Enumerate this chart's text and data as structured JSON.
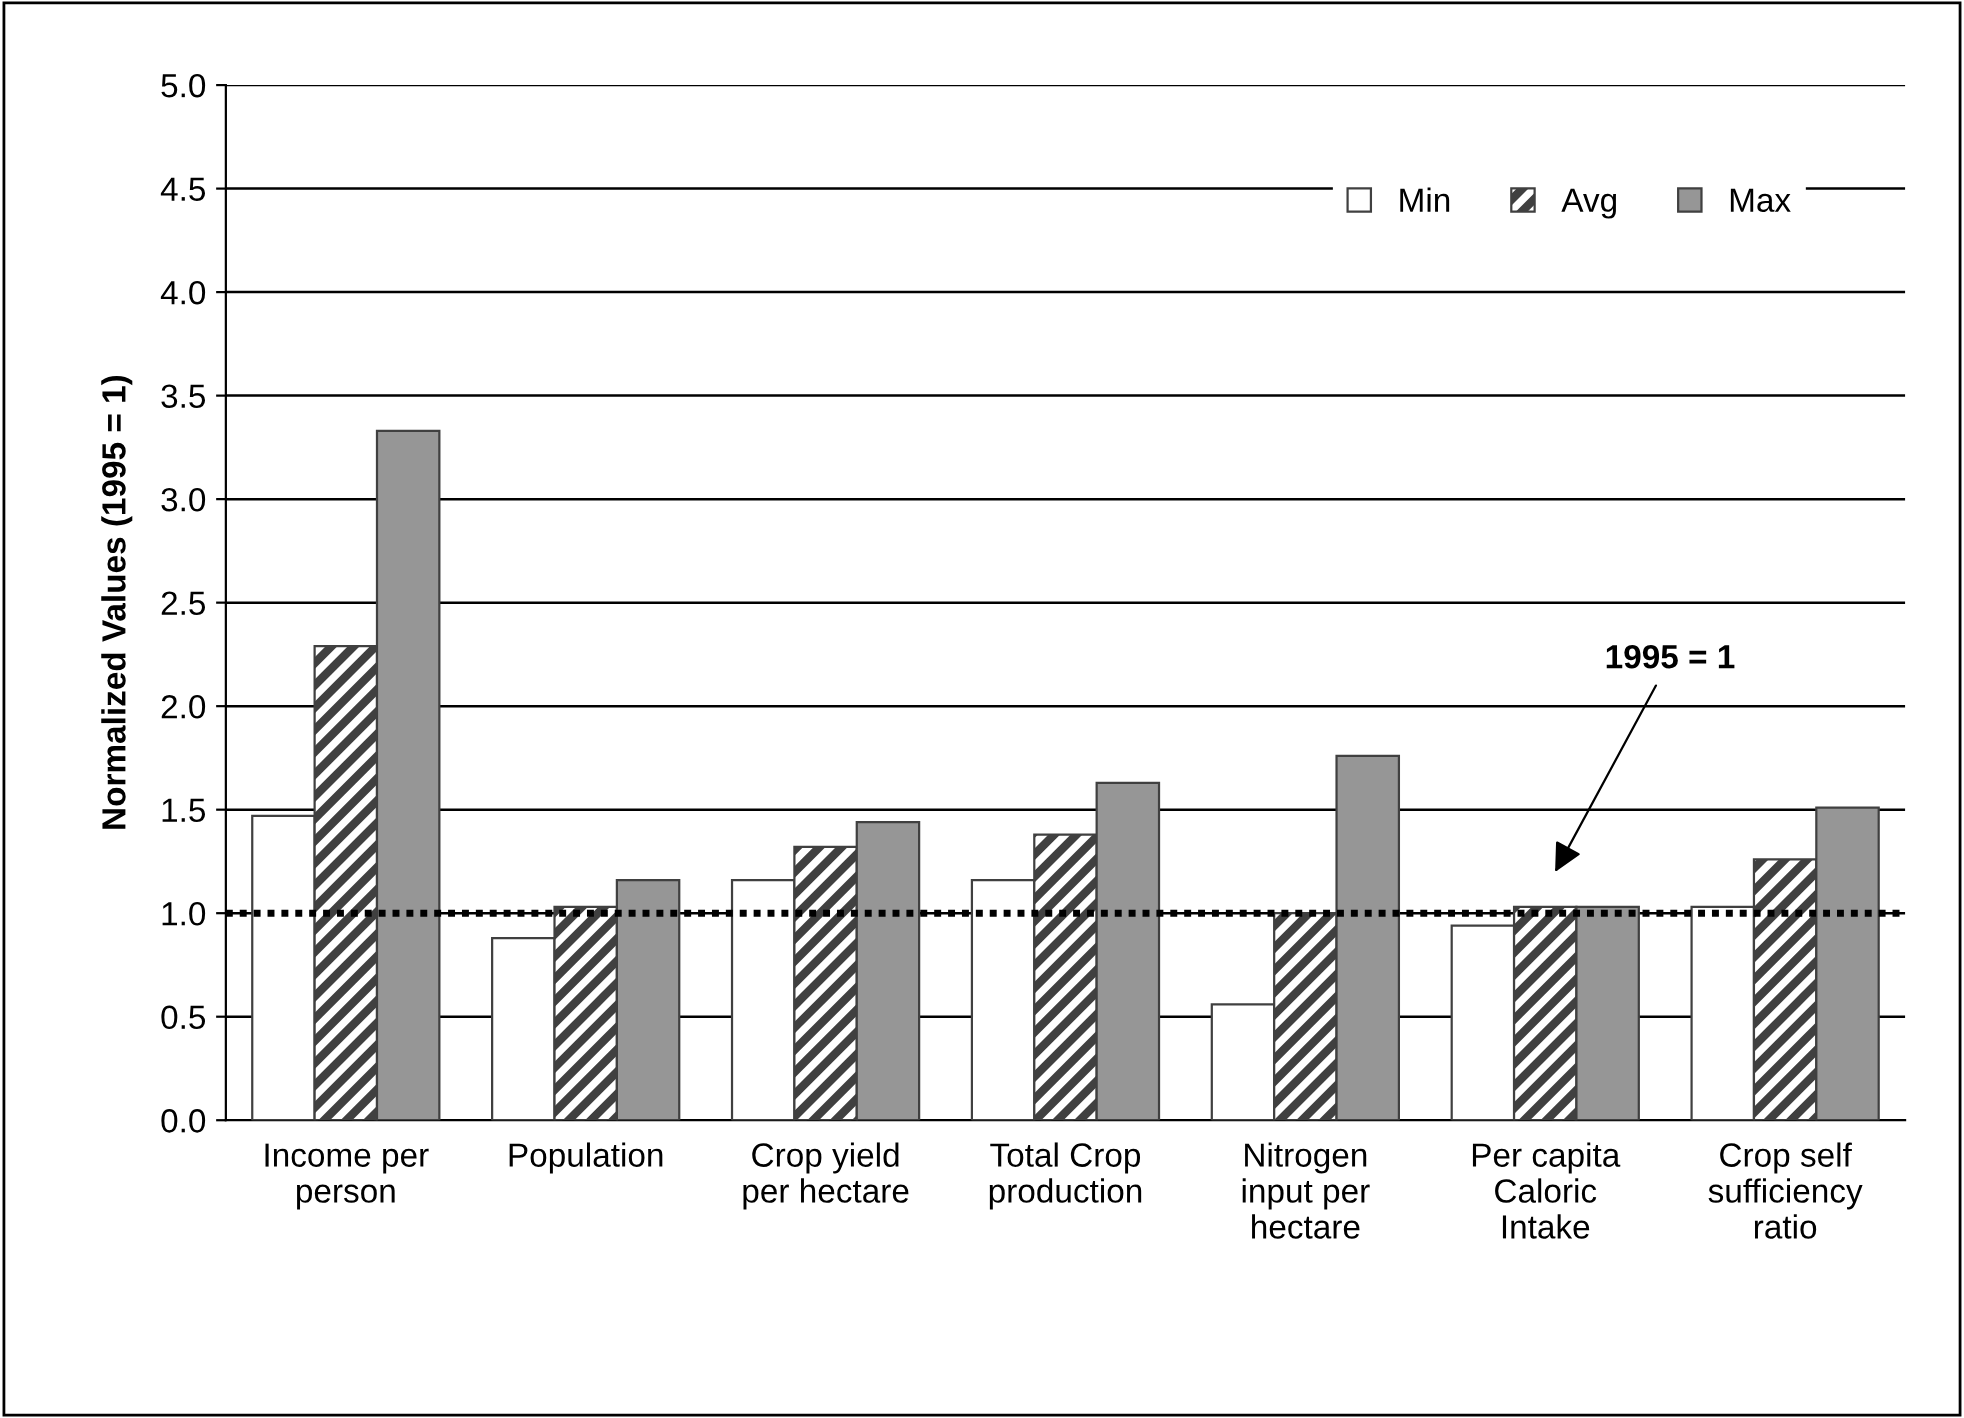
{
  "chart_data": {
    "type": "bar",
    "ylabel": "Normalized Values (1995 = 1)",
    "categories": [
      "Income per\nperson",
      "Population",
      "Crop yield\nper hectare",
      "Total Crop\nproduction",
      "Nitrogen\ninput per\nhectare",
      "Per capita\nCaloric\nIntake",
      "Crop self\nsufficiency\nratio"
    ],
    "series": [
      {
        "name": "Min",
        "color": "#ffffff",
        "values": [
          1.47,
          0.88,
          1.16,
          1.16,
          0.56,
          0.94,
          1.03
        ]
      },
      {
        "name": "Avg",
        "color": "#404040",
        "values": [
          2.29,
          1.03,
          1.32,
          1.38,
          1.0,
          1.03,
          1.26
        ]
      },
      {
        "name": "Max",
        "color": "#969696",
        "values": [
          3.33,
          1.16,
          1.44,
          1.63,
          1.76,
          1.03,
          1.51
        ]
      }
    ],
    "ylim": [
      0,
      5
    ],
    "yticks": [
      {
        "value": 0,
        "label": "0.0"
      },
      {
        "value": 0.5,
        "label": "0.5"
      },
      {
        "value": 1,
        "label": "1.0"
      },
      {
        "value": 1.5,
        "label": "1.5"
      },
      {
        "value": 2,
        "label": "2.0"
      },
      {
        "value": 2.5,
        "label": "2.5"
      },
      {
        "value": 3,
        "label": "3.0"
      },
      {
        "value": 3.5,
        "label": "3.5"
      },
      {
        "value": 4,
        "label": "4.0"
      },
      {
        "value": 4.5,
        "label": "4.5"
      },
      {
        "value": 5,
        "label": "5.0"
      }
    ],
    "grid": "y",
    "legend": "top right",
    "annotations": [
      "1995 = 1"
    ],
    "ref_lines": [
      {
        "axis": "y",
        "value": 1,
        "color": "#000000",
        "line_style": "dotted"
      }
    ]
  }
}
